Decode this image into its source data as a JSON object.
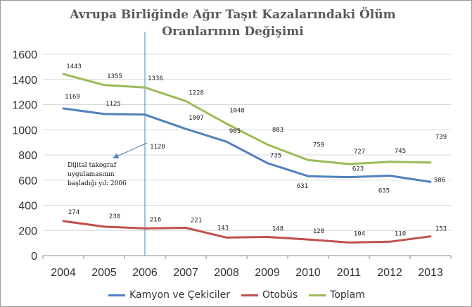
{
  "chart_data": {
    "type": "line",
    "title": "Avrupa Birliğinde Ağır Taşıt Kazalarındaki Ölüm Oranlarının Değişimi",
    "x": [
      "2004",
      "2005",
      "2006",
      "2007",
      "2008",
      "2009",
      "2010",
      "2011",
      "2012",
      "2013"
    ],
    "ylim": [
      0,
      1600
    ],
    "yticks": [
      "0",
      "200",
      "400",
      "600",
      "800",
      "1000",
      "1200",
      "1400",
      "1600"
    ],
    "grid": true,
    "legend_position": "bottom",
    "series": [
      {
        "name": "Kamyon ve Çekiciler",
        "color": "#4f81bd",
        "values": [
          1169,
          1125,
          1120,
          1007,
          905,
          735,
          631,
          623,
          635,
          586
        ],
        "labels": [
          "1169",
          "1125",
          "1120",
          "1007",
          "905",
          "735",
          "631",
          "623",
          "635",
          "586"
        ]
      },
      {
        "name": "Otobüs",
        "color": "#c0504d",
        "values": [
          274,
          230,
          216,
          221,
          143,
          148,
          128,
          104,
          110,
          153
        ],
        "labels": [
          "274",
          "230",
          "216",
          "221",
          "143",
          "148",
          "128",
          "104",
          "110",
          "153"
        ]
      },
      {
        "name": "Toplam",
        "color": "#9bbb59",
        "values": [
          1443,
          1355,
          1336,
          1228,
          1048,
          883,
          759,
          727,
          745,
          739
        ],
        "labels": [
          "1443",
          "1355",
          "1336",
          "1228",
          "1048",
          "883",
          "759",
          "727",
          "745",
          "739"
        ]
      }
    ],
    "annotation": {
      "lines": [
        "Dijital takograf",
        "uygulamasının",
        "başladığı yıl: 2006"
      ],
      "at_x": "2006",
      "line_color": "#4f81bd"
    }
  }
}
